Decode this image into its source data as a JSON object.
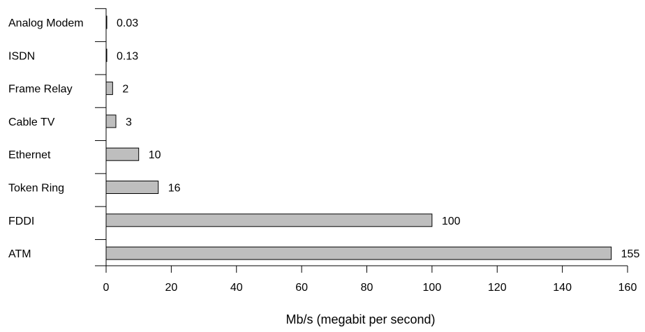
{
  "chart_data": {
    "type": "bar",
    "orientation": "horizontal",
    "categories": [
      "Analog Modem",
      "ISDN",
      "Frame Relay",
      "Cable TV",
      "Ethernet",
      "Token Ring",
      "FDDI",
      "ATM"
    ],
    "values": [
      0.03,
      0.13,
      2,
      3,
      10,
      16,
      100,
      155
    ],
    "value_labels": [
      "0.03",
      "0.13",
      "2",
      "3",
      "10",
      "16",
      "100",
      "155"
    ],
    "title": "",
    "xlabel": "Mb/s (megabit per second)",
    "ylabel": "",
    "xlim": [
      0,
      160
    ],
    "xticks": [
      0,
      20,
      40,
      60,
      80,
      100,
      120,
      140,
      160
    ],
    "bar_color": "#bebebe",
    "grid": false,
    "legend": "none"
  }
}
